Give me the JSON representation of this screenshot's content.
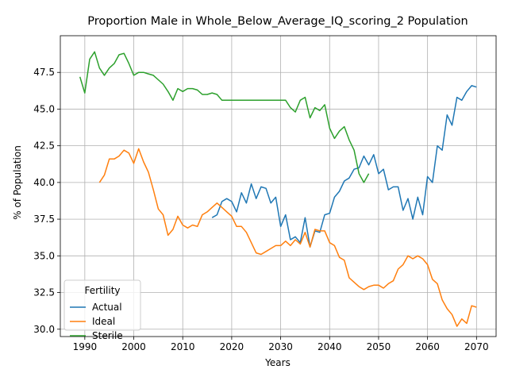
{
  "chart_data": {
    "type": "line",
    "title": "Proportion Male in Whole_Below_Average_IQ_scoring_2 Population",
    "xlabel": "Years",
    "ylabel": "% of Population",
    "xlim": [
      1985,
      2074
    ],
    "ylim": [
      29.5,
      50.0
    ],
    "xticks": [
      1990,
      2000,
      2010,
      2020,
      2030,
      2040,
      2050,
      2060,
      2070
    ],
    "yticks": [
      30.0,
      32.5,
      35.0,
      37.5,
      40.0,
      42.5,
      45.0,
      47.5
    ],
    "grid": true,
    "legend": {
      "title": "Fertility",
      "placement": "lower-left"
    },
    "series": [
      {
        "name": "Actual",
        "color": "#1f77b4",
        "x": [
          2016,
          2017,
          2018,
          2019,
          2020,
          2021,
          2022,
          2023,
          2024,
          2025,
          2026,
          2027,
          2028,
          2029,
          2030,
          2031,
          2032,
          2033,
          2034,
          2035,
          2036,
          2037,
          2038,
          2039,
          2040,
          2041,
          2042,
          2043,
          2044,
          2045,
          2046,
          2047,
          2048,
          2049,
          2050,
          2051,
          2052,
          2053,
          2054,
          2055,
          2056,
          2057,
          2058,
          2059,
          2060,
          2061,
          2062,
          2063,
          2064,
          2065,
          2066,
          2067,
          2068,
          2069,
          2070
        ],
        "values": [
          37.6,
          37.8,
          38.7,
          38.9,
          38.7,
          38.0,
          39.3,
          38.6,
          39.9,
          38.9,
          39.7,
          39.6,
          38.6,
          39.0,
          37.0,
          37.8,
          36.1,
          36.3,
          35.9,
          37.6,
          35.6,
          36.7,
          36.6,
          37.8,
          37.9,
          39.0,
          39.4,
          40.1,
          40.3,
          40.9,
          41.0,
          41.8,
          41.2,
          41.9,
          40.6,
          40.9,
          39.5,
          39.7,
          39.7,
          38.1,
          38.9,
          37.5,
          39.0,
          37.8,
          40.4,
          40.0,
          42.5,
          42.2,
          44.6,
          43.9,
          45.8,
          45.6,
          46.2,
          46.6,
          46.5
        ]
      },
      {
        "name": "Ideal",
        "color": "#ff7f0e",
        "x": [
          1993,
          1994,
          1995,
          1996,
          1997,
          1998,
          1999,
          2000,
          2001,
          2002,
          2003,
          2004,
          2005,
          2006,
          2007,
          2008,
          2009,
          2010,
          2011,
          2012,
          2013,
          2014,
          2015,
          2016,
          2017,
          2018,
          2019,
          2020,
          2021,
          2022,
          2023,
          2024,
          2025,
          2026,
          2027,
          2028,
          2029,
          2030,
          2031,
          2032,
          2033,
          2034,
          2035,
          2036,
          2037,
          2038,
          2039,
          2040,
          2041,
          2042,
          2043,
          2044,
          2045,
          2046,
          2047,
          2048,
          2049,
          2050,
          2051,
          2052,
          2053,
          2054,
          2055,
          2056,
          2057,
          2058,
          2059,
          2060,
          2061,
          2062,
          2063,
          2064,
          2065,
          2066,
          2067,
          2068,
          2069,
          2070
        ],
        "values": [
          40.0,
          40.5,
          41.6,
          41.6,
          41.8,
          42.2,
          42.0,
          41.3,
          42.3,
          41.4,
          40.7,
          39.5,
          38.2,
          37.8,
          36.4,
          36.8,
          37.7,
          37.1,
          36.9,
          37.1,
          37.0,
          37.8,
          38.0,
          38.3,
          38.6,
          38.3,
          38.0,
          37.7,
          37.0,
          37.0,
          36.6,
          35.9,
          35.2,
          35.1,
          35.3,
          35.5,
          35.7,
          35.7,
          36.0,
          35.7,
          36.1,
          35.8,
          36.6,
          35.6,
          36.8,
          36.7,
          36.7,
          35.9,
          35.7,
          34.9,
          34.7,
          33.5,
          33.2,
          32.9,
          32.7,
          32.9,
          33.0,
          33.0,
          32.8,
          33.1,
          33.3,
          34.1,
          34.4,
          35.0,
          34.8,
          35.0,
          34.8,
          34.4,
          33.4,
          33.1,
          32.0,
          31.4,
          31.0,
          30.2,
          30.7,
          30.4,
          31.6,
          31.5
        ]
      },
      {
        "name": "Sterile",
        "color": "#2ca02c",
        "x": [
          1989,
          1990,
          1991,
          1992,
          1993,
          1994,
          1995,
          1996,
          1997,
          1998,
          1999,
          2000,
          2001,
          2002,
          2003,
          2004,
          2005,
          2006,
          2007,
          2008,
          2009,
          2010,
          2011,
          2012,
          2013,
          2014,
          2015,
          2016,
          2017,
          2018,
          2019,
          2020,
          2021,
          2022,
          2023,
          2024,
          2025,
          2026,
          2027,
          2028,
          2029,
          2030,
          2031,
          2032,
          2033,
          2034,
          2035,
          2036,
          2037,
          2038,
          2039,
          2040,
          2041,
          2042,
          2043,
          2044,
          2045,
          2046,
          2047,
          2048
        ],
        "values": [
          47.2,
          46.1,
          48.4,
          48.9,
          47.8,
          47.3,
          47.8,
          48.1,
          48.7,
          48.8,
          48.1,
          47.3,
          47.5,
          47.5,
          47.4,
          47.3,
          47.0,
          46.7,
          46.2,
          45.6,
          46.4,
          46.2,
          46.4,
          46.4,
          46.3,
          46.0,
          46.0,
          46.1,
          46.0,
          45.6,
          45.6,
          45.6,
          45.6,
          45.6,
          45.6,
          45.6,
          45.6,
          45.6,
          45.6,
          45.6,
          45.6,
          45.6,
          45.6,
          45.1,
          44.8,
          45.6,
          45.8,
          44.4,
          45.1,
          44.9,
          45.3,
          43.7,
          43.0,
          43.5,
          43.8,
          42.9,
          42.2,
          40.6,
          40.0,
          40.6
        ]
      }
    ]
  }
}
